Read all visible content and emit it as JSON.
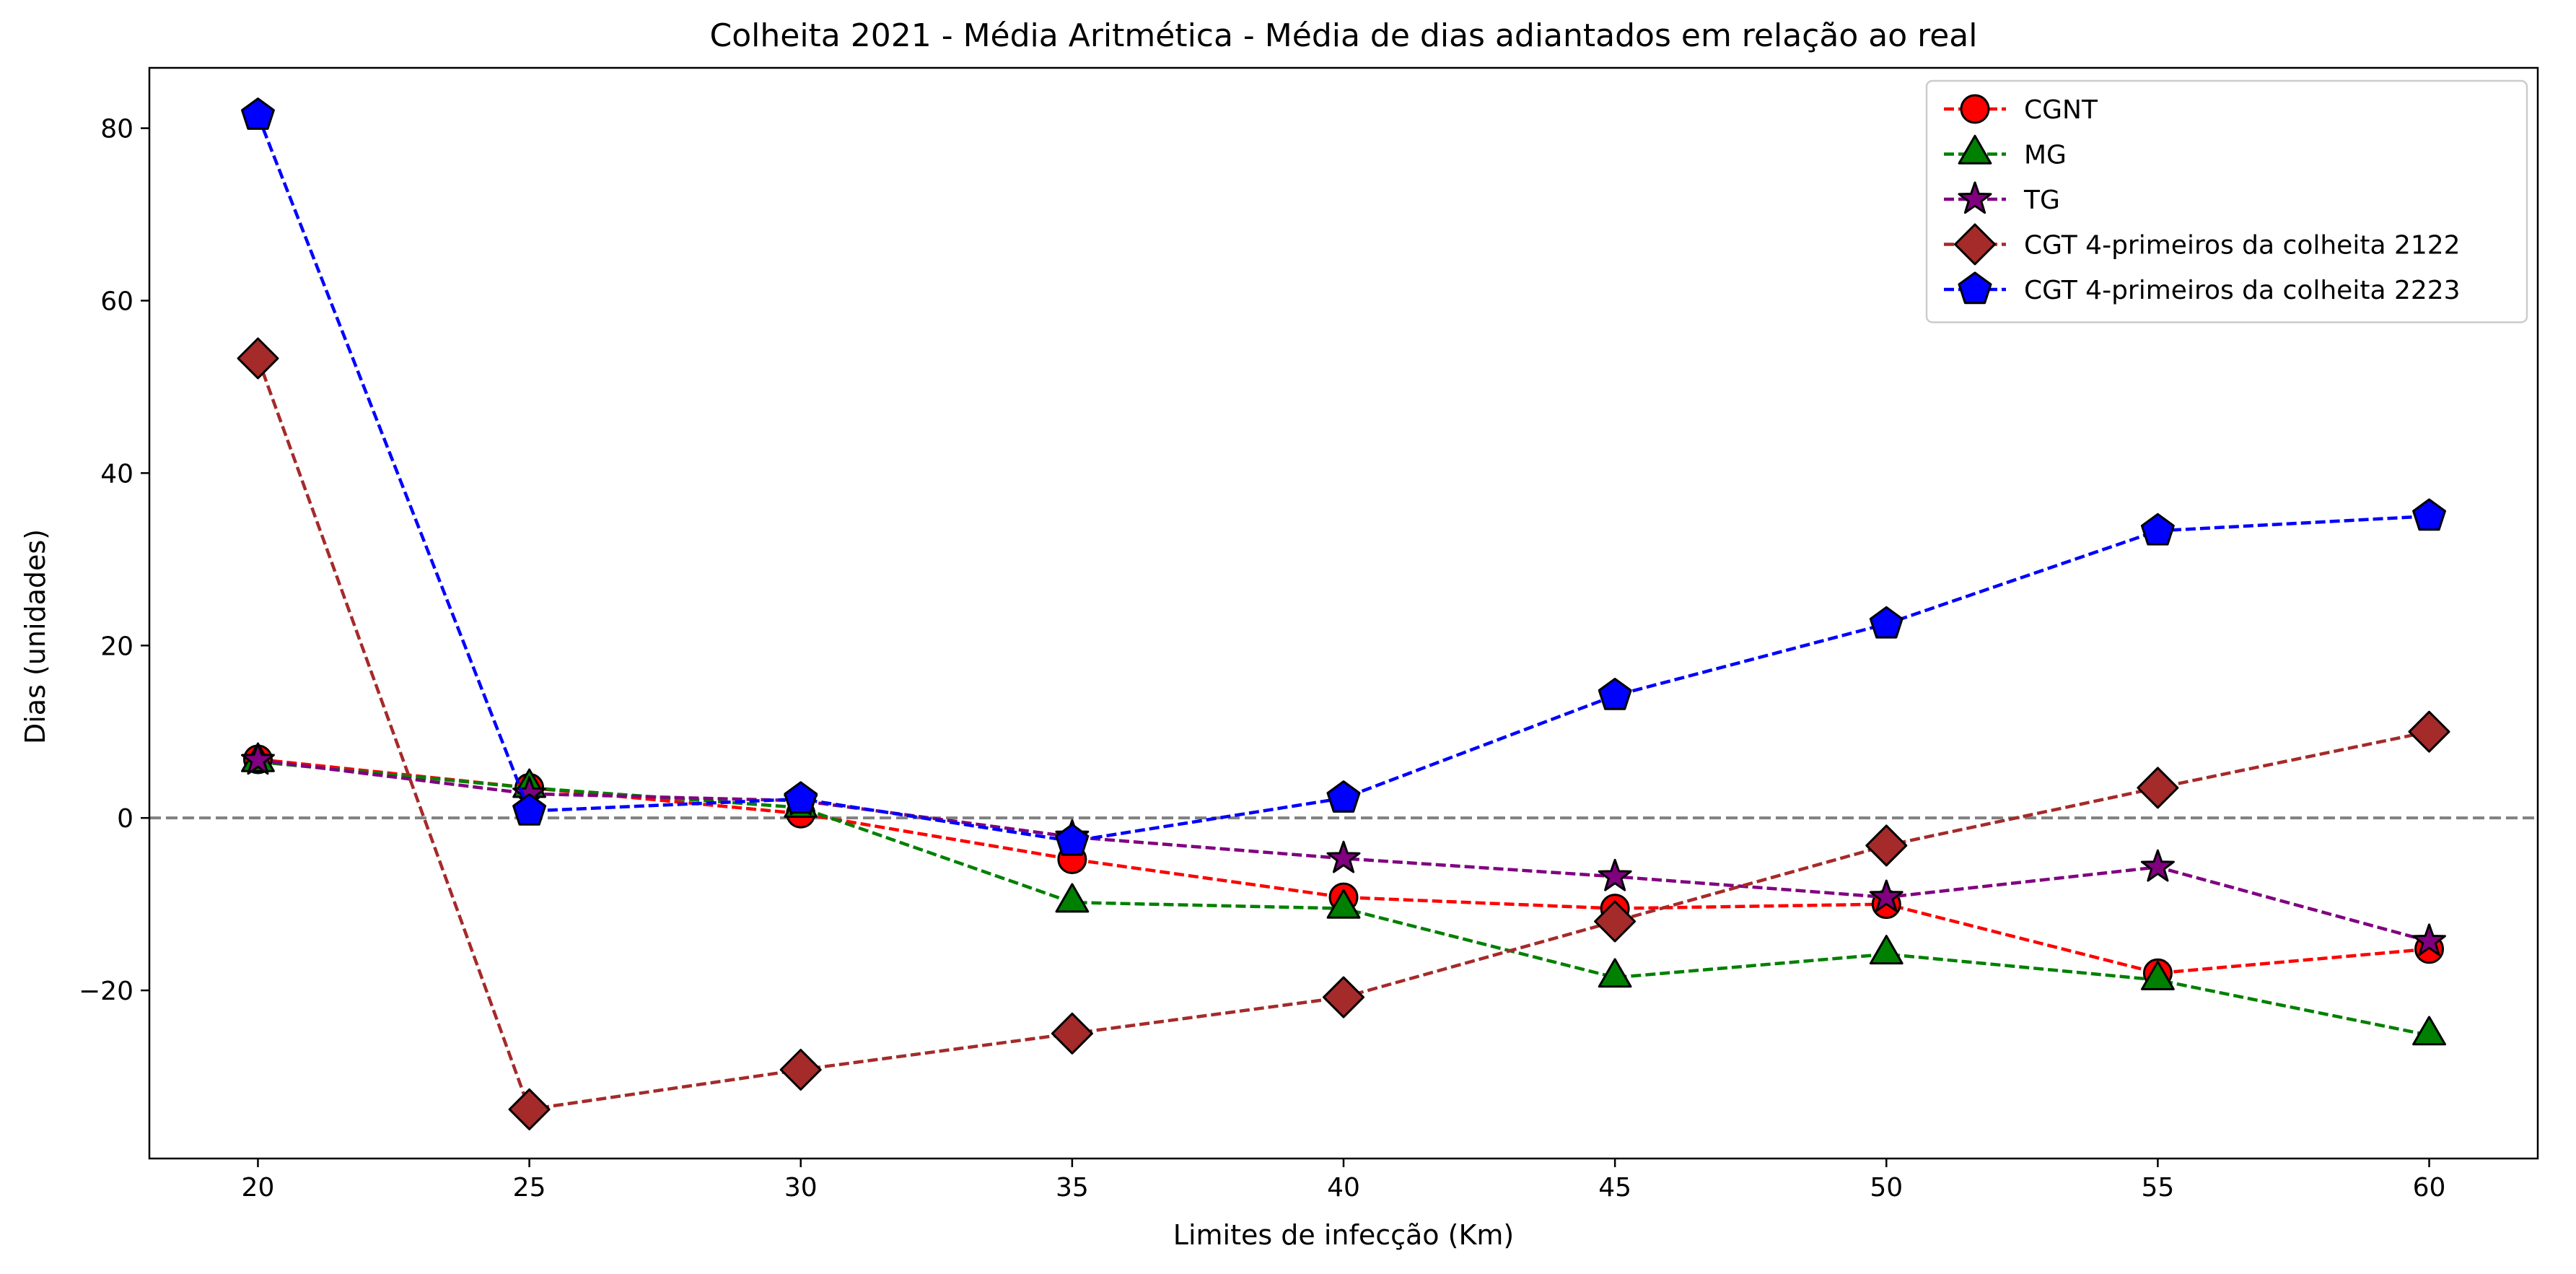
{
  "chart_data": {
    "type": "line",
    "title": "Colheita 2021 - Média Aritmética - Média de dias adiantados em relação ao real",
    "xlabel": "Limites de infecção (Km)",
    "ylabel": "Dias (unidades)",
    "x": [
      20,
      25,
      30,
      35,
      40,
      45,
      50,
      55,
      60
    ],
    "xticks": [
      "20",
      "25",
      "30",
      "35",
      "40",
      "45",
      "50",
      "55",
      "60"
    ],
    "yticks": [
      "−20",
      "0",
      "20",
      "40",
      "60",
      "80"
    ],
    "xlim": [
      18,
      62
    ],
    "ylim": [
      -39.5,
      87
    ],
    "grid": false,
    "legend_position": "top-right",
    "reference_line": {
      "y": 0,
      "style": "dashed",
      "color": "#808080"
    },
    "series": [
      {
        "name": "CGNT",
        "color": "#ff0000",
        "marker": "circle",
        "values": [
          6.8,
          3.5,
          0.5,
          -4.8,
          -9.2,
          -10.5,
          -10.0,
          -18.0,
          -15.2
        ]
      },
      {
        "name": "MG",
        "color": "#008000",
        "marker": "triangle",
        "values": [
          6.5,
          3.5,
          1.2,
          -9.8,
          -10.5,
          -18.5,
          -15.8,
          -18.8,
          -25.2
        ]
      },
      {
        "name": "TG",
        "color": "#800080",
        "marker": "star",
        "values": [
          6.7,
          2.8,
          2.0,
          -2.2,
          -4.7,
          -6.8,
          -9.2,
          -5.7,
          -14.3
        ]
      },
      {
        "name": "CGT 4-primeiros da colheita 2122",
        "color": "#a52a2a",
        "marker": "diamond",
        "values": [
          53.3,
          -33.8,
          -29.2,
          -25.0,
          -20.8,
          -12.0,
          -3.2,
          3.5,
          10.0
        ]
      },
      {
        "name": "CGT 4-primeiros da colheita 2223",
        "color": "#0000ff",
        "marker": "pentagon",
        "values": [
          81.5,
          0.8,
          2.2,
          -2.7,
          2.3,
          14.2,
          22.5,
          33.3,
          35.0
        ]
      }
    ]
  }
}
